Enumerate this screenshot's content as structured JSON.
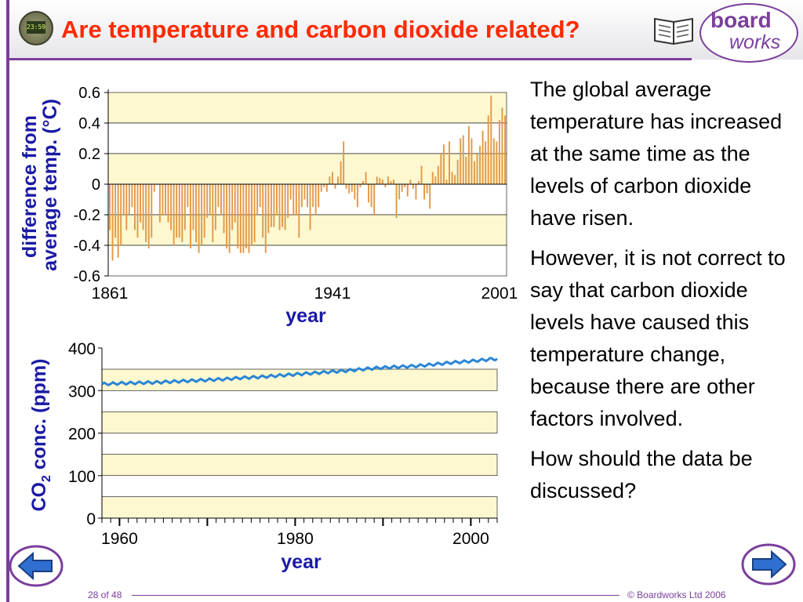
{
  "header": {
    "title": "Are temperature and carbon dioxide related?",
    "clock_text": "23:59",
    "logo_top": "board",
    "logo_bottom": "works",
    "accent_color": "#7b3f9c",
    "title_color": "#ff2a00"
  },
  "body_text": {
    "para1": "The global average temperature has increased at the same time as the levels of carbon dioxide have risen.",
    "para2": "However, it is not correct to say that carbon dioxide levels have caused this temperature change, because there are other factors involved.",
    "para3": "How should the data be discussed?"
  },
  "footer": {
    "page": "28 of 48",
    "copyright": "© Boardworks Ltd 2006"
  },
  "icons": {
    "clock": "clock-icon",
    "book": "book-icon",
    "prev": "arrow-left-icon",
    "next": "arrow-right-icon"
  },
  "chart_data": [
    {
      "type": "bar",
      "ylabel_line1": "difference from",
      "ylabel_line2": "average temp. (°C)",
      "xlabel": "year",
      "ylim": [
        -0.6,
        0.6
      ],
      "yticks": [
        "0.6",
        "0.4",
        "0.2",
        "0",
        "-0.2",
        "-0.4",
        "-0.6"
      ],
      "xtick_labels": [
        "1861",
        "1941",
        "2001"
      ],
      "x_range": [
        1861,
        2003
      ],
      "bar_color": "#e29a4a",
      "band_color": "#fdf8d0",
      "years": [
        1861,
        1862,
        1863,
        1864,
        1865,
        1866,
        1867,
        1868,
        1869,
        1870,
        1871,
        1872,
        1873,
        1874,
        1875,
        1876,
        1877,
        1878,
        1879,
        1880,
        1881,
        1882,
        1883,
        1884,
        1885,
        1886,
        1887,
        1888,
        1889,
        1890,
        1891,
        1892,
        1893,
        1894,
        1895,
        1896,
        1897,
        1898,
        1899,
        1900,
        1901,
        1902,
        1903,
        1904,
        1905,
        1906,
        1907,
        1908,
        1909,
        1910,
        1911,
        1912,
        1913,
        1914,
        1915,
        1916,
        1917,
        1918,
        1919,
        1920,
        1921,
        1922,
        1923,
        1924,
        1925,
        1926,
        1927,
        1928,
        1929,
        1930,
        1931,
        1932,
        1933,
        1934,
        1935,
        1936,
        1937,
        1938,
        1939,
        1940,
        1941,
        1942,
        1943,
        1944,
        1945,
        1946,
        1947,
        1948,
        1949,
        1950,
        1951,
        1952,
        1953,
        1954,
        1955,
        1956,
        1957,
        1958,
        1959,
        1960,
        1961,
        1962,
        1963,
        1964,
        1965,
        1966,
        1967,
        1968,
        1969,
        1970,
        1971,
        1972,
        1973,
        1974,
        1975,
        1976,
        1977,
        1978,
        1979,
        1980,
        1981,
        1982,
        1983,
        1984,
        1985,
        1986,
        1987,
        1988,
        1989,
        1990,
        1991,
        1992,
        1993,
        1994,
        1995,
        1996,
        1997,
        1998,
        1999,
        2000,
        2001,
        2002,
        2003
      ],
      "values": [
        -0.3,
        -0.5,
        -0.35,
        -0.48,
        -0.4,
        -0.2,
        -0.3,
        -0.2,
        -0.15,
        -0.3,
        -0.35,
        -0.25,
        -0.3,
        -0.38,
        -0.42,
        -0.35,
        -0.05,
        0.0,
        -0.25,
        -0.2,
        -0.2,
        -0.25,
        -0.3,
        -0.4,
        -0.35,
        -0.35,
        -0.38,
        -0.3,
        -0.15,
        -0.42,
        -0.3,
        -0.38,
        -0.45,
        -0.4,
        -0.35,
        -0.22,
        -0.2,
        -0.38,
        -0.3,
        -0.15,
        -0.2,
        -0.32,
        -0.42,
        -0.45,
        -0.3,
        -0.25,
        -0.42,
        -0.45,
        -0.45,
        -0.42,
        -0.45,
        -0.4,
        -0.38,
        -0.2,
        -0.15,
        -0.35,
        -0.45,
        -0.32,
        -0.28,
        -0.28,
        -0.2,
        -0.3,
        -0.28,
        -0.3,
        -0.22,
        -0.1,
        -0.2,
        -0.2,
        -0.35,
        -0.15,
        -0.1,
        -0.15,
        -0.3,
        -0.15,
        -0.2,
        -0.15,
        -0.05,
        -0.02,
        -0.05,
        0.05,
        0.08,
        -0.03,
        0.05,
        0.15,
        0.28,
        -0.03,
        -0.06,
        -0.05,
        -0.1,
        -0.15,
        -0.02,
        0.02,
        0.08,
        -0.12,
        -0.15,
        -0.2,
        0.05,
        0.04,
        0.03,
        -0.02,
        0.05,
        0.02,
        0.03,
        -0.22,
        -0.1,
        -0.05,
        -0.02,
        -0.08,
        0.03,
        -0.03,
        -0.1,
        0.02,
        0.12,
        -0.1,
        -0.06,
        -0.16,
        0.08,
        0.05,
        0.12,
        0.2,
        0.26,
        0.03,
        0.28,
        0.08,
        0.06,
        0.16,
        0.3,
        0.32,
        0.18,
        0.38,
        0.3,
        0.15,
        0.2,
        0.25,
        0.35,
        0.28,
        0.45,
        0.58,
        0.3,
        0.28,
        0.42,
        0.5,
        0.45
      ]
    },
    {
      "type": "line",
      "ylabel": "CO2 conc. (ppm)",
      "xlabel": "year",
      "ylim": [
        0,
        400
      ],
      "yticks": [
        "400",
        "300",
        "200",
        "100",
        "0"
      ],
      "xtick_labels": [
        "1960",
        "1980",
        "2000"
      ],
      "x_range": [
        1958,
        2003
      ],
      "line_color": "#2a86d6",
      "band_color": "#fdf8d0",
      "series": [
        {
          "x": [
            1958,
            1960,
            1962,
            1964,
            1966,
            1968,
            1970,
            1972,
            1974,
            1976,
            1978,
            1980,
            1982,
            1984,
            1986,
            1988,
            1990,
            1992,
            1994,
            1996,
            1998,
            2000,
            2002,
            2003
          ],
          "values": [
            315,
            317,
            318,
            319,
            321,
            323,
            325,
            327,
            330,
            332,
            335,
            338,
            341,
            344,
            347,
            351,
            354,
            356,
            358,
            362,
            366,
            369,
            373,
            375
          ]
        }
      ]
    }
  ]
}
